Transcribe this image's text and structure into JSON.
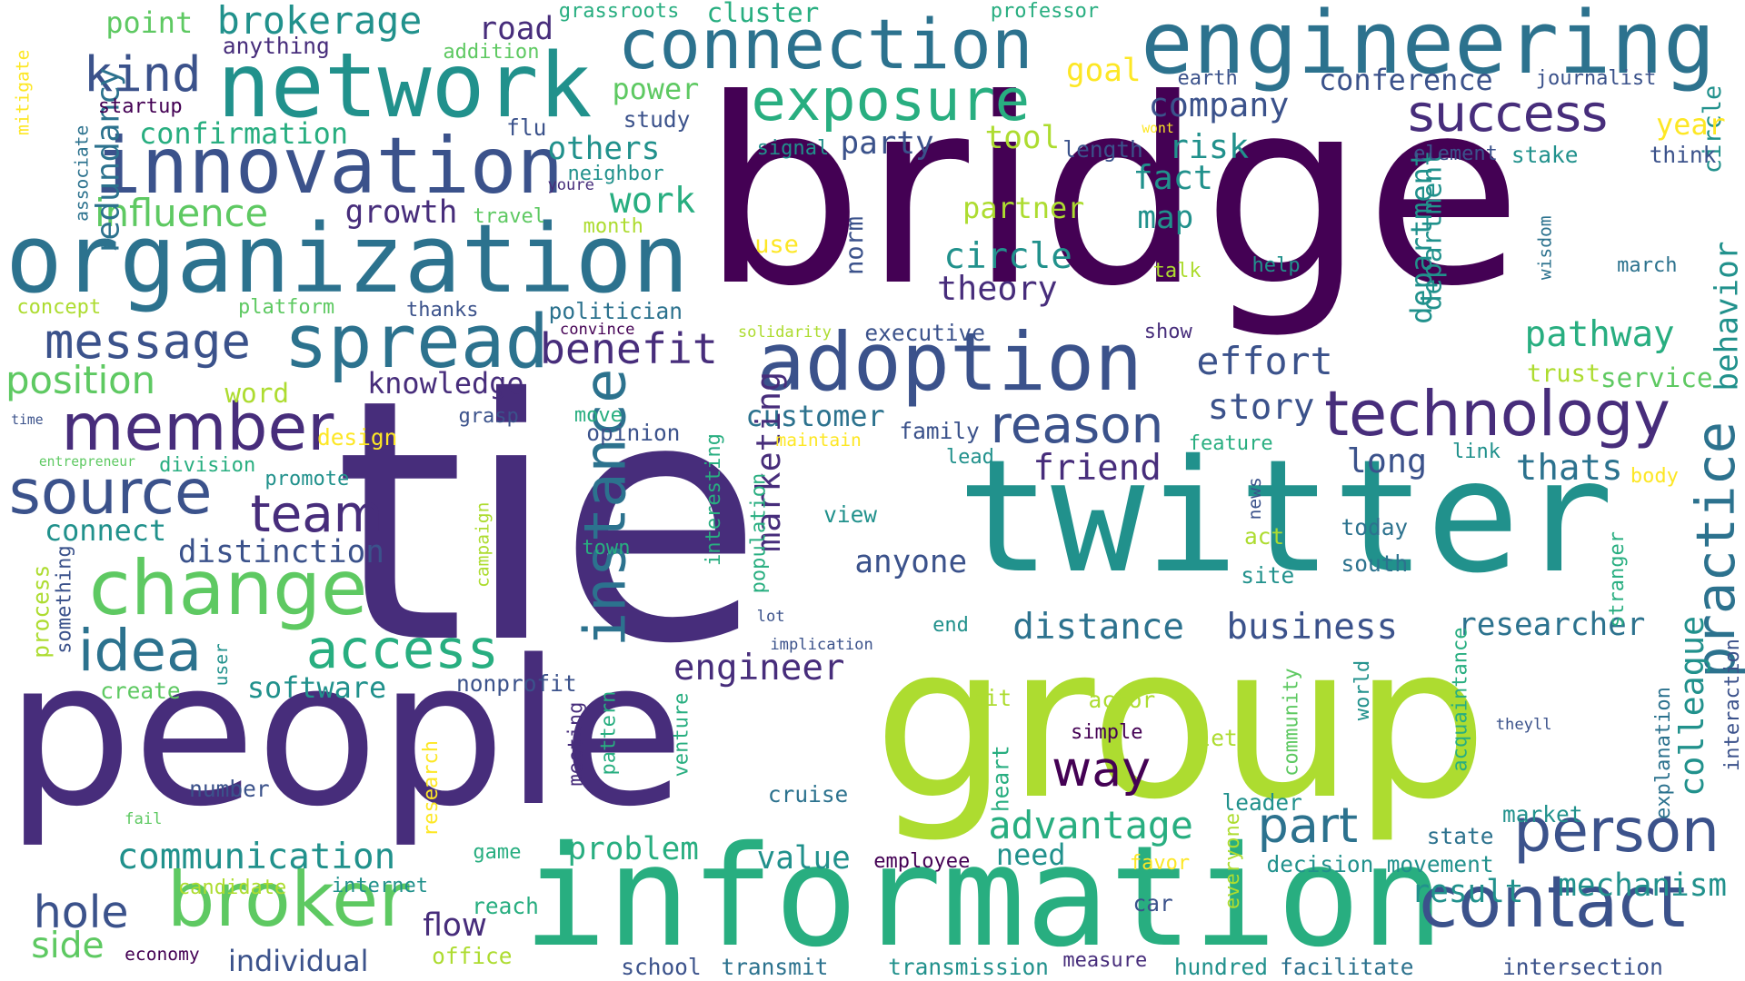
{
  "words": [
    "bridge",
    "tie",
    "twitter",
    "group",
    "people",
    "information",
    "engineering",
    "network",
    "organization",
    "innovation",
    "connection",
    "adoption",
    "technology",
    "change",
    "broker",
    "contact",
    "spread",
    "member",
    "person",
    "success",
    "exposure",
    "source",
    "idea",
    "access",
    "instance",
    "practice",
    "reason",
    "team",
    "part",
    "message",
    "way",
    "kind",
    "benefit",
    "communication",
    "brokerage",
    "influence",
    "engineer",
    "distance",
    "business",
    "company",
    "advantage",
    "hole",
    "pathway",
    "risk",
    "story",
    "fact",
    "side",
    "conference",
    "circle",
    "theory",
    "long",
    "friend",
    "thats",
    "problem",
    "redundancy",
    "confirmation",
    "effort",
    "researcher",
    "position",
    "party",
    "tool",
    "behavior",
    "mechanism",
    "colleague",
    "department",
    "customer",
    "marketing",
    "result",
    "anyone",
    "need",
    "value",
    "connect",
    "distinction",
    "work",
    "growth",
    "map",
    "knowledge",
    "partner",
    "road",
    "power",
    "others",
    "software",
    "goal",
    "flow",
    "point",
    "individual",
    "cluster",
    "department2",
    "norm",
    "executive",
    "service",
    "circle2",
    "trust",
    "opinion",
    "family",
    "journalist",
    "year",
    "think",
    "element",
    "stake",
    "earth",
    "study",
    "startup",
    "anything",
    "addition",
    "flu",
    "neighbor",
    "youre",
    "month",
    "travel",
    "grassroots",
    "professor",
    "mitigate",
    "associate",
    "concept",
    "platform",
    "thanks",
    "politician",
    "convince",
    "solidarity",
    "talk",
    "help",
    "wisdom",
    "march",
    "show",
    "signal",
    "length",
    "wont",
    "time",
    "entrepreneur",
    "division",
    "promote",
    "design",
    "word",
    "grasp",
    "move",
    "maintain",
    "lead",
    "feature",
    "link",
    "body",
    "news",
    "view",
    "today",
    "south",
    "act",
    "site",
    "town",
    "interesting",
    "population",
    "campaign",
    "process",
    "something",
    "create",
    "user",
    "nonprofit",
    "lot",
    "implication",
    "end",
    "stranger",
    "hit",
    "actor",
    "simple",
    "let",
    "community",
    "world",
    "acquaintance",
    "theyll",
    "explanation",
    "interaction",
    "heart",
    "meeting",
    "pattern",
    "venture",
    "research",
    "number",
    "cruise",
    "leader",
    "market",
    "fail",
    "game",
    "favor",
    "decision",
    "movement",
    "state",
    "everyone",
    "candidate",
    "internet",
    "reach",
    "car",
    "economy",
    "office",
    "school",
    "transmit",
    "transmission",
    "measure",
    "hundred",
    "facilitate",
    "intersection",
    "employee",
    "use"
  ],
  "colors": {
    "dark_purple": "#440154",
    "purple": "#472d7b",
    "indigo": "#3b528b",
    "blue": "#2c728e",
    "teal": "#21918c",
    "green_teal": "#28ae80",
    "green": "#5ec962",
    "lime": "#addc30",
    "yellow": "#fde725"
  }
}
